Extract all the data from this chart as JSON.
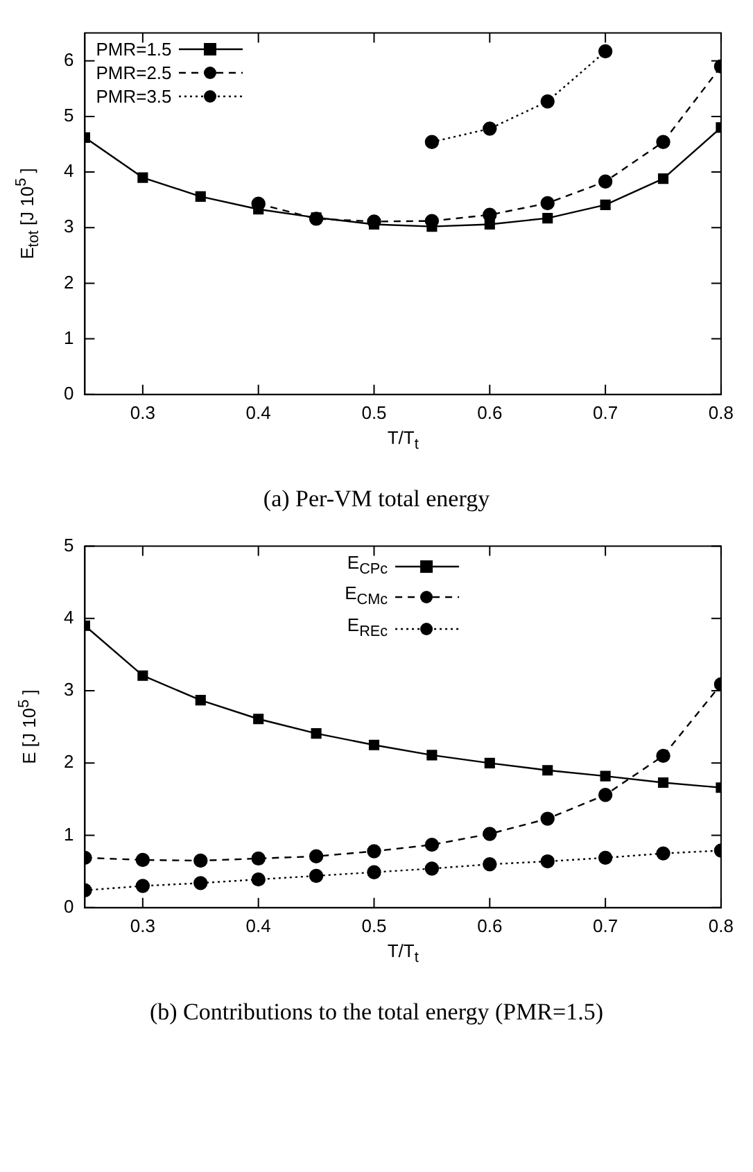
{
  "chart_data": [
    {
      "type": "line",
      "title": "(a) Per-VM total energy",
      "xlabel": "T/T$_{t}$",
      "ylabel": "E$_{tot}$ [J 10$^{5}$ ]",
      "x": [
        0.25,
        0.3,
        0.35,
        0.4,
        0.45,
        0.5,
        0.55,
        0.6,
        0.65,
        0.7,
        0.75,
        0.8
      ],
      "xlim": [
        0.25,
        0.8
      ],
      "xticks": [
        0.3,
        0.4,
        0.5,
        0.6,
        0.7,
        0.8
      ],
      "ylim": [
        0,
        6.5
      ],
      "yticks": [
        0,
        1,
        2,
        3,
        4,
        5,
        6
      ],
      "legend": "top left",
      "grid": false,
      "series": [
        {
          "name": "PMR=1.5",
          "color": "#000000",
          "marker": "square",
          "line_style": "solid",
          "values": [
            4.62,
            3.9,
            3.56,
            3.33,
            3.18,
            3.06,
            3.02,
            3.06,
            3.17,
            3.41,
            3.88,
            4.8
          ]
        },
        {
          "name": "PMR=2.5",
          "color": "#000000",
          "marker": "circle",
          "line_style": "dashed",
          "values": [
            null,
            null,
            null,
            3.43,
            3.16,
            3.11,
            3.12,
            3.23,
            3.44,
            3.83,
            4.54,
            5.9
          ]
        },
        {
          "name": "PMR=3.5",
          "color": "#000000",
          "marker": "circle",
          "line_style": "dotted",
          "values": [
            null,
            null,
            null,
            null,
            null,
            null,
            4.54,
            4.78,
            5.27,
            6.17,
            null,
            null
          ]
        }
      ]
    },
    {
      "type": "line",
      "title": "(b) Contributions to the total energy (PMR=1.5)",
      "xlabel": "T/T$_{t}$",
      "ylabel": "E [J 10$^{5}$ ]",
      "x": [
        0.25,
        0.3,
        0.35,
        0.4,
        0.45,
        0.5,
        0.55,
        0.6,
        0.65,
        0.7,
        0.75,
        0.8
      ],
      "xlim": [
        0.25,
        0.8
      ],
      "xticks": [
        0.3,
        0.4,
        0.5,
        0.6,
        0.7,
        0.8
      ],
      "ylim": [
        0,
        5
      ],
      "yticks": [
        0,
        1,
        2,
        3,
        4,
        5
      ],
      "legend": "top",
      "grid": false,
      "series": [
        {
          "name": "E$_{CPc}$",
          "color": "#000000",
          "marker": "square",
          "line_style": "solid",
          "values": [
            3.9,
            3.21,
            2.87,
            2.61,
            2.41,
            2.25,
            2.11,
            2.0,
            1.9,
            1.82,
            1.73,
            1.66
          ]
        },
        {
          "name": "E$_{CMc}$",
          "color": "#000000",
          "marker": "circle",
          "line_style": "dashed",
          "values": [
            0.69,
            0.66,
            0.65,
            0.68,
            0.71,
            0.78,
            0.87,
            1.02,
            1.23,
            1.56,
            2.1,
            3.09
          ]
        },
        {
          "name": "E$_{REc}$",
          "color": "#000000",
          "marker": "circle",
          "line_style": "dotted",
          "values": [
            0.24,
            0.3,
            0.34,
            0.39,
            0.44,
            0.49,
            0.54,
            0.6,
            0.64,
            0.69,
            0.75,
            0.79
          ]
        }
      ]
    }
  ]
}
